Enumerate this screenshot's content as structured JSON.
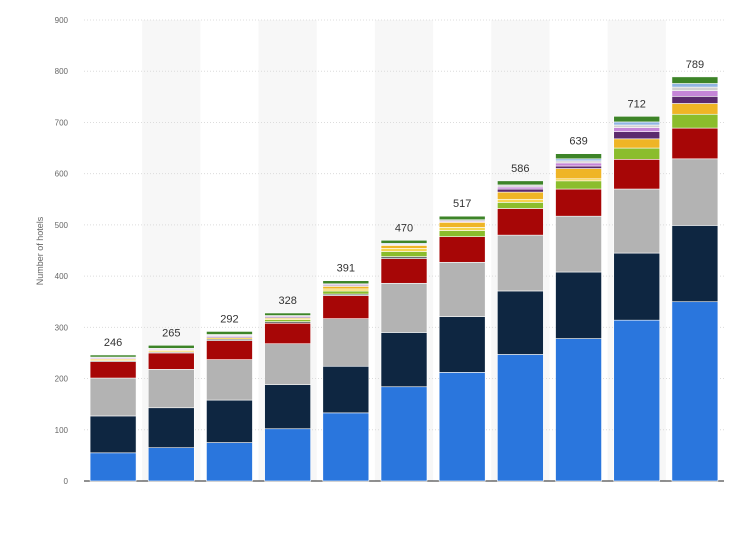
{
  "chart_data": {
    "type": "bar",
    "stacked": true,
    "ylabel": "Number of hotels",
    "ylim": [
      0,
      900
    ],
    "yticks": [
      0,
      100,
      200,
      300,
      400,
      500,
      600,
      700,
      800,
      900
    ],
    "grid": true,
    "totals": [
      246,
      265,
      292,
      328,
      391,
      470,
      517,
      586,
      639,
      712,
      789
    ],
    "series": [
      {
        "color": "#2a76dd",
        "values": [
          55,
          65,
          75,
          102,
          133,
          184,
          212,
          247,
          278,
          314,
          350
        ]
      },
      {
        "color": "#0e2641",
        "values": [
          72,
          78,
          83,
          86,
          91,
          106,
          109,
          124,
          130,
          131,
          149
        ]
      },
      {
        "color": "#b3b3b3",
        "values": [
          74,
          75,
          79,
          80,
          93,
          96,
          106,
          109,
          109,
          125,
          130
        ]
      },
      {
        "color": "#a70606",
        "values": [
          32,
          32,
          37,
          40,
          45,
          48,
          50,
          52,
          53,
          58,
          60
        ]
      },
      {
        "color": "#6e6e6e",
        "values": [
          2,
          2,
          3,
          3,
          3,
          4,
          0,
          0,
          0,
          0,
          0
        ]
      },
      {
        "color": "#8bbd2c",
        "values": [
          0,
          0,
          0,
          4,
          6,
          10,
          12,
          12,
          16,
          22,
          27
        ]
      },
      {
        "color": "#f5d44f",
        "values": [
          3,
          3,
          3,
          3,
          4,
          6,
          6,
          6,
          4,
          0,
          0
        ]
      },
      {
        "color": "#efb526",
        "values": [
          0,
          0,
          0,
          0,
          5,
          6,
          10,
          14,
          20,
          18,
          21
        ]
      },
      {
        "color": "#5b2a6e",
        "values": [
          0,
          0,
          2,
          2,
          2,
          0,
          0,
          6,
          5,
          14,
          14
        ]
      },
      {
        "color": "#c585d7",
        "values": [
          2,
          2,
          2,
          2,
          2,
          0,
          2,
          4,
          6,
          8,
          11
        ]
      },
      {
        "color": "#d0d0d0",
        "values": [
          2,
          2,
          2,
          1,
          1,
          2,
          3,
          4,
          4,
          5,
          7
        ]
      },
      {
        "color": "#91b5e3",
        "values": [
          0,
          0,
          0,
          0,
          0,
          2,
          0,
          0,
          4,
          6,
          7
        ]
      },
      {
        "color": "#3d8428",
        "values": [
          4,
          6,
          6,
          5,
          6,
          6,
          7,
          8,
          10,
          11,
          13
        ]
      }
    ]
  }
}
